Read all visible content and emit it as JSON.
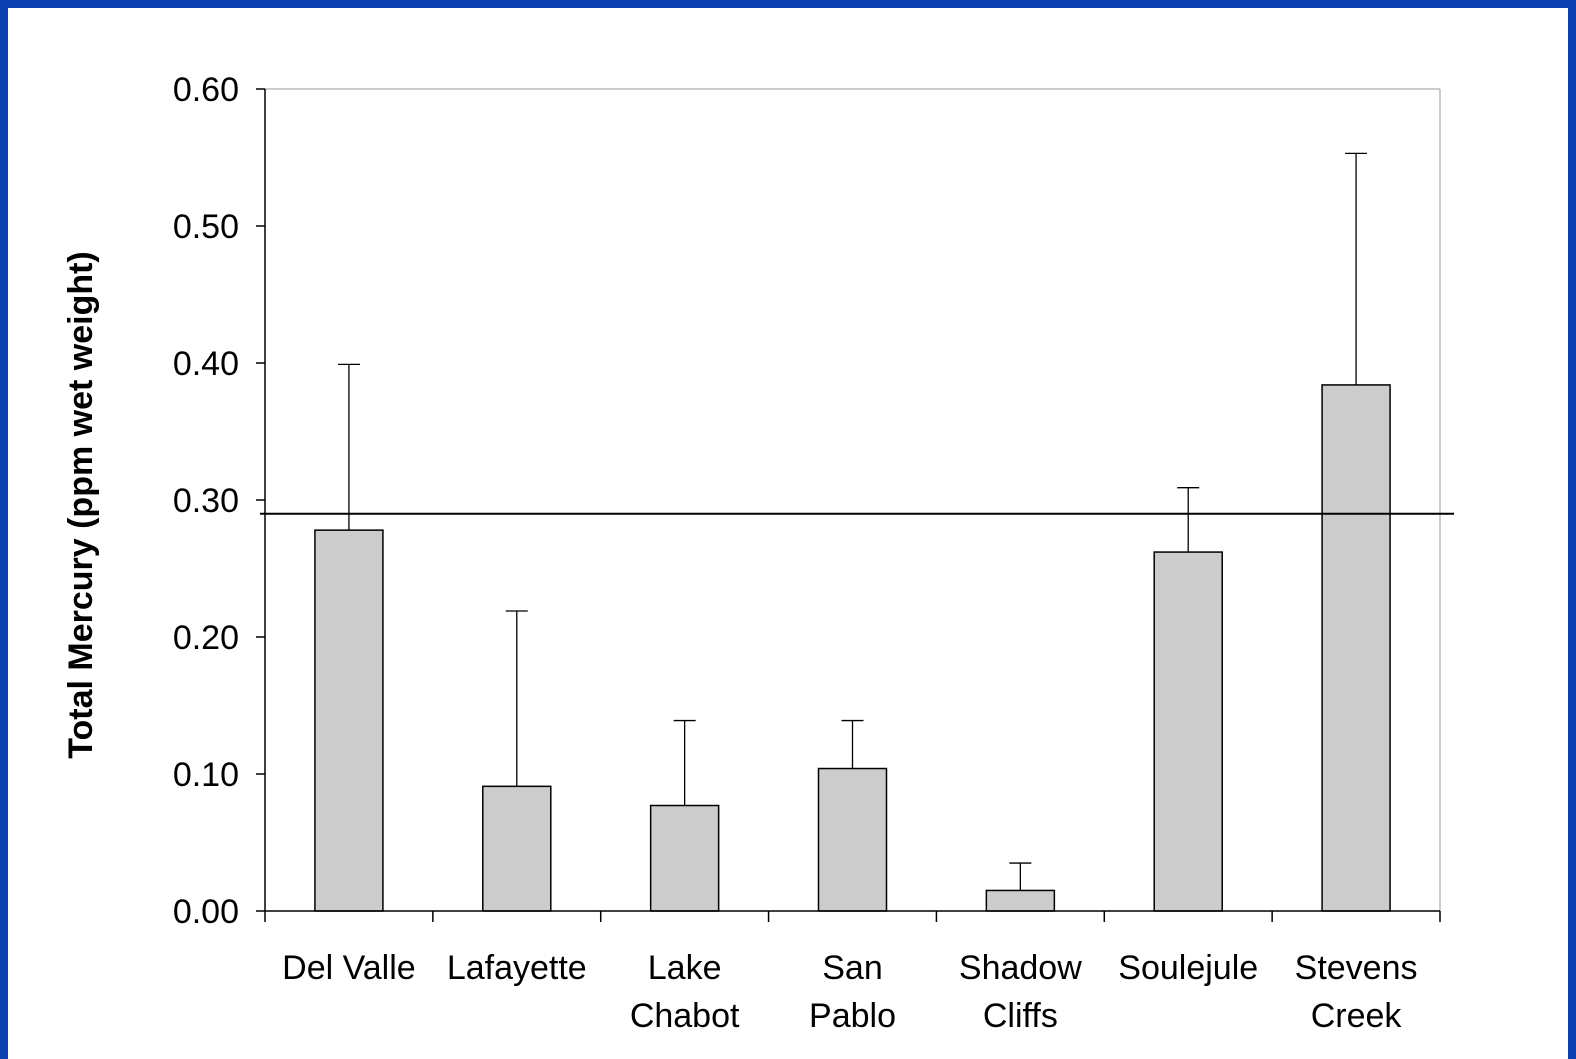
{
  "chart_data": {
    "type": "bar",
    "ylabel": "Total Mercury (ppm wet weight)",
    "xlabel": "",
    "ylim": [
      0,
      0.6
    ],
    "yticks": [
      "0.00",
      "0.10",
      "0.20",
      "0.30",
      "0.40",
      "0.50",
      "0.60"
    ],
    "categories": [
      [
        "Del Valle"
      ],
      [
        "Lafayette"
      ],
      [
        "Lake",
        "Chabot"
      ],
      [
        "San",
        "Pablo"
      ],
      [
        "Shadow",
        "Cliffs"
      ],
      [
        "Soulejule"
      ],
      [
        "Stevens",
        "Creek"
      ]
    ],
    "values": [
      0.278,
      0.091,
      0.077,
      0.104,
      0.015,
      0.262,
      0.384
    ],
    "error_upper": [
      0.399,
      0.219,
      0.139,
      0.139,
      0.035,
      0.309,
      0.553
    ],
    "reference_line": 0.29,
    "colors": {
      "bar_fill": "#cccccc",
      "bar_stroke": "#000000",
      "frame": "#0a3fb0"
    },
    "grid": false,
    "legend": "none"
  }
}
